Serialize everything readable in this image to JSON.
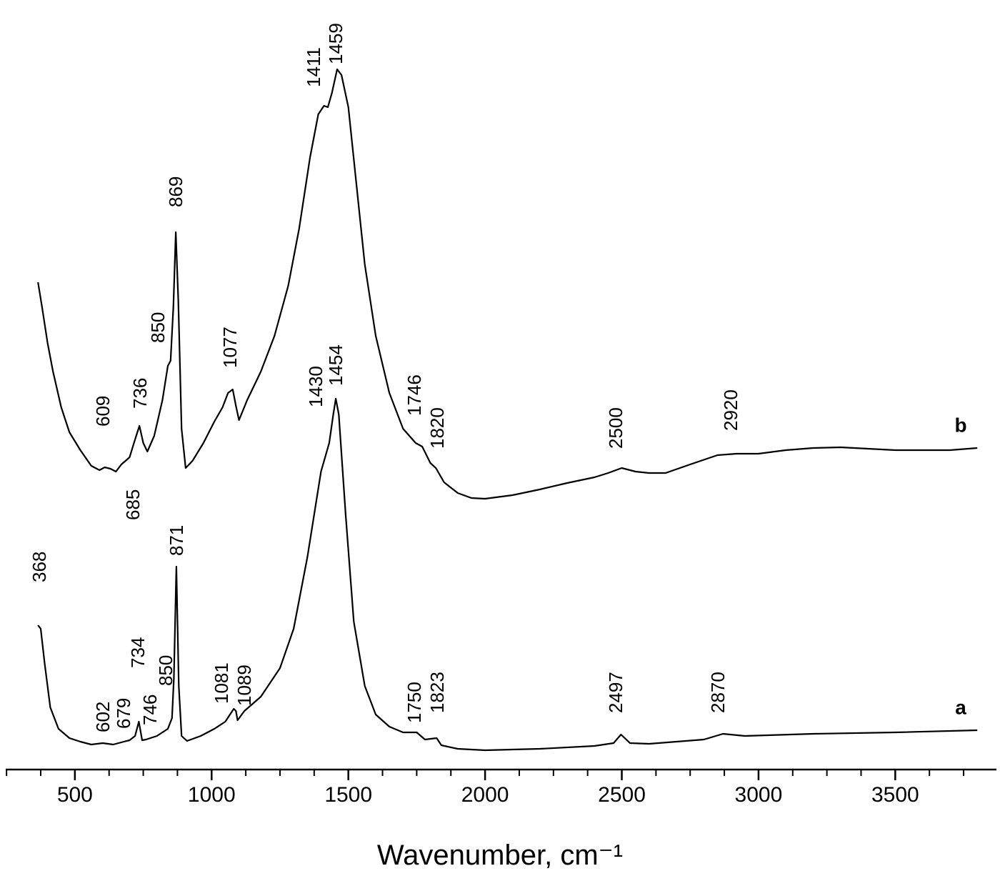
{
  "chart_data": {
    "type": "line",
    "xlabel": "Wavenumber, cm⁻¹",
    "xlim": [
      247,
      3870
    ],
    "xticks": [
      500,
      1000,
      1500,
      2000,
      2500,
      3000,
      3500
    ],
    "xminorticks": [
      250,
      375,
      625,
      750,
      875,
      1125,
      1250,
      1375,
      1625,
      1750,
      1875,
      2125,
      2250,
      2375,
      2625,
      2750,
      2875,
      3125,
      3250,
      3375,
      3625,
      3750
    ],
    "ylim": [
      0,
      1077
    ],
    "series": [
      {
        "name": "a",
        "color": "#000000",
        "x": [
          365,
          375,
          390,
          410,
          440,
          480,
          520,
          560,
          602,
          640,
          679,
          700,
          720,
          734,
          746,
          760,
          800,
          840,
          855,
          862,
          871,
          880,
          890,
          910,
          960,
          1010,
          1050,
          1081,
          1089,
          1095,
          1120,
          1180,
          1250,
          1300,
          1350,
          1400,
          1430,
          1445,
          1454,
          1465,
          1490,
          1520,
          1560,
          1600,
          1650,
          1700,
          1750,
          1780,
          1823,
          1840,
          1900,
          2000,
          2200,
          2400,
          2470,
          2497,
          2530,
          2600,
          2800,
          2870,
          2950,
          3200,
          3500,
          3800
        ],
        "values": [
          202,
          197,
          147,
          87,
          57,
          44,
          39,
          35,
          37,
          35,
          39,
          41,
          47,
          67,
          41,
          42,
          47,
          57,
          72,
          127,
          284,
          117,
          47,
          40,
          47,
          57,
          67,
          85,
          82,
          69,
          82,
          102,
          142,
          197,
          297,
          417,
          457,
          497,
          519,
          497,
          357,
          207,
          117,
          77,
          60,
          52,
          52,
          42,
          44,
          34,
          29,
          27,
          29,
          33,
          37,
          49,
          37,
          36,
          42,
          50,
          47,
          50,
          52,
          55
        ],
        "peak_labels": [
          368,
          602,
          679,
          734,
          746,
          850,
          871,
          1081,
          1089,
          1430,
          1454,
          1750,
          1823,
          2497,
          2870
        ]
      },
      {
        "name": "b",
        "color": "#000000",
        "x": [
          365,
          380,
          400,
          420,
          450,
          480,
          520,
          560,
          590,
          609,
          630,
          650,
          670,
          685,
          700,
          720,
          736,
          750,
          765,
          790,
          820,
          840,
          850,
          860,
          869,
          878,
          890,
          905,
          930,
          970,
          1010,
          1040,
          1060,
          1077,
          1090,
          1100,
          1130,
          1180,
          1230,
          1280,
          1320,
          1360,
          1390,
          1411,
          1425,
          1440,
          1459,
          1475,
          1500,
          1530,
          1560,
          1600,
          1650,
          1700,
          1746,
          1770,
          1800,
          1820,
          1850,
          1900,
          1950,
          2000,
          2100,
          2200,
          2300,
          2400,
          2450,
          2500,
          2550,
          2600,
          2660,
          2750,
          2850,
          2920,
          3000,
          3100,
          3200,
          3300,
          3400,
          3500,
          3600,
          3700,
          3800
        ],
        "values": [
          682,
          647,
          597,
          557,
          507,
          472,
          447,
          425,
          419,
          423,
          421,
          417,
          427,
          432,
          437,
          462,
          481,
          457,
          445,
          467,
          517,
          565,
          572,
          647,
          752,
          657,
          477,
          422,
          432,
          457,
          487,
          507,
          527,
          532,
          507,
          489,
          517,
          557,
          607,
          677,
          757,
          857,
          917,
          929,
          927,
          947,
          980,
          972,
          927,
          817,
          707,
          607,
          527,
          477,
          457,
          452,
          429,
          422,
          402,
          387,
          380,
          379,
          384,
          392,
          401,
          409,
          415,
          422,
          417,
          415,
          415,
          427,
          440,
          442,
          442,
          447,
          450,
          451,
          449,
          447,
          447,
          447,
          450
        ],
        "peak_labels": [
          609,
          685,
          736,
          850,
          869,
          1077,
          1411,
          1459,
          1746,
          1820,
          2500,
          2920
        ]
      }
    ]
  }
}
